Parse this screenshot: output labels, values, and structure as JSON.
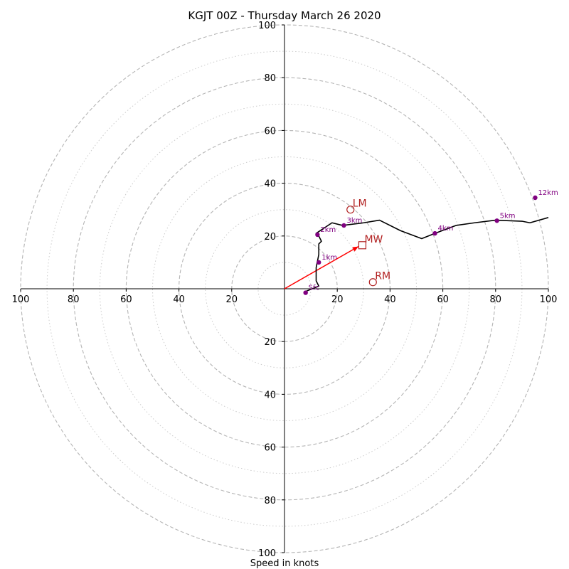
{
  "chart_data": {
    "type": "line",
    "title": "KGJT 00Z - Thursday March 26 2020",
    "xlabel": "Speed in knots",
    "ylabel": "",
    "xlim": [
      -100,
      100
    ],
    "ylim": [
      -100,
      100
    ],
    "rings_major": [
      20,
      40,
      60,
      80,
      100
    ],
    "rings_minor": [
      10,
      30,
      50,
      70,
      90
    ],
    "tick_labels": {
      "left": [
        "100",
        "80",
        "60",
        "40",
        "20"
      ],
      "right": [
        "20",
        "40",
        "60",
        "80",
        "100"
      ],
      "top": [
        "20",
        "40",
        "60",
        "80",
        "100"
      ],
      "bottom": [
        "20",
        "40",
        "60",
        "80",
        "100"
      ]
    },
    "hodograph": {
      "u": [
        8,
        13,
        12,
        12,
        13,
        13,
        14,
        13,
        12,
        18,
        22,
        30,
        36,
        44,
        52,
        57,
        65,
        72,
        80,
        90,
        93,
        100
      ],
      "v": [
        -1,
        1,
        3,
        8,
        13,
        17,
        18,
        20,
        21,
        25,
        24,
        25,
        26,
        22,
        19,
        21,
        24,
        25,
        26,
        25.6,
        25,
        27
      ],
      "color": "#000000"
    },
    "height_markers": [
      {
        "label": "Sfc",
        "u": 8,
        "v": -1.5
      },
      {
        "label": "1km",
        "u": 13,
        "v": 10
      },
      {
        "label": "2km",
        "u": 12.5,
        "v": 20.5
      },
      {
        "label": "3km",
        "u": 22.5,
        "v": 24
      },
      {
        "label": "4km",
        "u": 57,
        "v": 21
      },
      {
        "label": "5km",
        "u": 80.5,
        "v": 25.8
      },
      {
        "label": "12km",
        "u": 95,
        "v": 34.5
      }
    ],
    "marker_color": "#800080",
    "storm_motion": [
      {
        "label": "LM",
        "u": 25,
        "v": 30,
        "shape": "circle"
      },
      {
        "label": "MW",
        "u": 29.5,
        "v": 16.5,
        "shape": "square"
      },
      {
        "label": "RM",
        "u": 33.5,
        "v": 2.5,
        "shape": "circle"
      }
    ],
    "storm_color": "#b22222",
    "shear_vector": {
      "u": 28,
      "v": 16,
      "color": "#ff0000"
    },
    "grid": true,
    "legend": "none"
  }
}
